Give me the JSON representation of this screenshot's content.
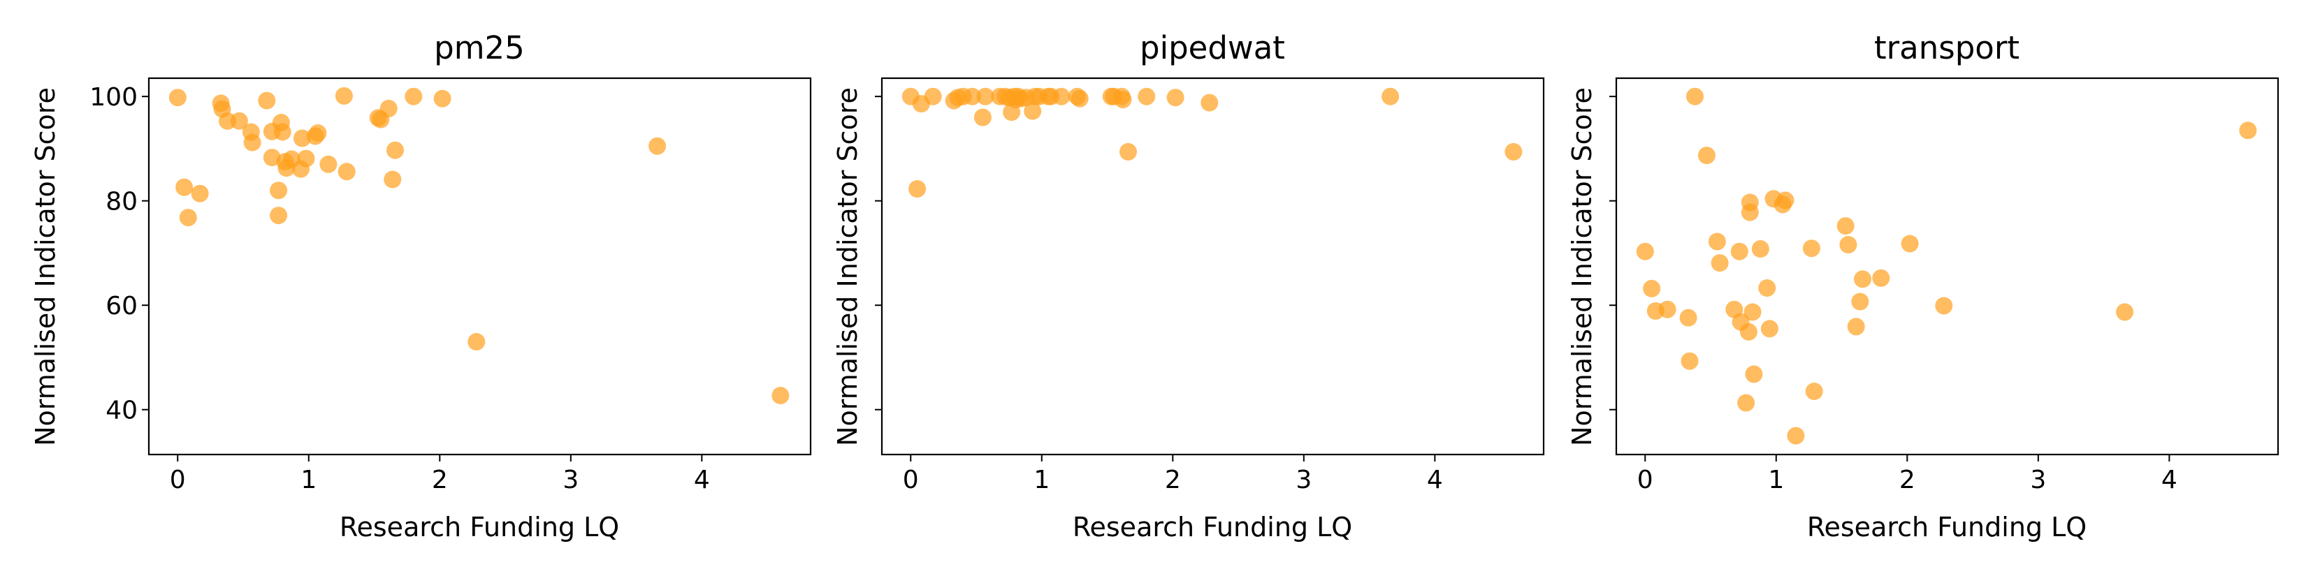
{
  "figure": {
    "marker_color": "#ff9f1c"
  },
  "chart_data": [
    {
      "type": "scatter",
      "title": "pm25",
      "xlabel": "Research Funding LQ",
      "ylabel": "Normalised Indicator Score",
      "xlim": [
        -0.22,
        4.83
      ],
      "ylim": [
        31.4,
        103.5
      ],
      "xticks": [
        0,
        1,
        2,
        3,
        4
      ],
      "yticks": [
        40,
        60,
        80,
        100
      ],
      "show_ytick_labels": true,
      "grid": false,
      "points": [
        [
          0.0,
          99.8
        ],
        [
          0.05,
          82.6
        ],
        [
          0.08,
          76.8
        ],
        [
          0.17,
          81.4
        ],
        [
          0.33,
          98.7
        ],
        [
          0.34,
          97.6
        ],
        [
          0.38,
          95.3
        ],
        [
          0.47,
          95.3
        ],
        [
          0.56,
          93.2
        ],
        [
          0.57,
          91.2
        ],
        [
          0.68,
          99.2
        ],
        [
          0.72,
          93.3
        ],
        [
          0.72,
          88.3
        ],
        [
          0.77,
          82.0
        ],
        [
          0.77,
          77.2
        ],
        [
          0.79,
          95.0
        ],
        [
          0.8,
          93.2
        ],
        [
          0.82,
          87.5
        ],
        [
          0.83,
          86.3
        ],
        [
          0.87,
          88.0
        ],
        [
          0.94,
          86.1
        ],
        [
          0.95,
          92.0
        ],
        [
          0.98,
          88.1
        ],
        [
          1.05,
          92.4
        ],
        [
          1.07,
          93.0
        ],
        [
          1.15,
          87.0
        ],
        [
          1.27,
          100.1
        ],
        [
          1.29,
          85.6
        ],
        [
          1.53,
          95.9
        ],
        [
          1.55,
          95.6
        ],
        [
          1.61,
          97.7
        ],
        [
          1.64,
          84.1
        ],
        [
          1.66,
          89.7
        ],
        [
          1.8,
          100.0
        ],
        [
          2.02,
          99.6
        ],
        [
          2.28,
          53.0
        ],
        [
          3.66,
          90.5
        ],
        [
          4.6,
          42.7
        ]
      ]
    },
    {
      "type": "scatter",
      "title": "pipedwat",
      "xlabel": "Research Funding LQ",
      "ylabel": "Normalised Indicator Score",
      "xlim": [
        -0.22,
        4.83
      ],
      "ylim": [
        31.4,
        103.5
      ],
      "xticks": [
        0,
        1,
        2,
        3,
        4
      ],
      "yticks": [
        40,
        60,
        80,
        100
      ],
      "show_ytick_labels": false,
      "grid": false,
      "points": [
        [
          0.0,
          100.0
        ],
        [
          0.05,
          82.3
        ],
        [
          0.08,
          98.6
        ],
        [
          0.17,
          100.0
        ],
        [
          0.33,
          99.2
        ],
        [
          0.36,
          99.8
        ],
        [
          0.4,
          100.0
        ],
        [
          0.47,
          100.0
        ],
        [
          0.55,
          96.0
        ],
        [
          0.57,
          100.0
        ],
        [
          0.68,
          100.0
        ],
        [
          0.72,
          100.0
        ],
        [
          0.75,
          99.8
        ],
        [
          0.77,
          97.0
        ],
        [
          0.79,
          100.0
        ],
        [
          0.8,
          99.4
        ],
        [
          0.82,
          100.0
        ],
        [
          0.84,
          99.6
        ],
        [
          0.88,
          99.8
        ],
        [
          0.93,
          97.2
        ],
        [
          0.95,
          100.0
        ],
        [
          0.98,
          100.0
        ],
        [
          1.05,
          100.0
        ],
        [
          1.07,
          100.0
        ],
        [
          1.15,
          100.0
        ],
        [
          1.27,
          100.0
        ],
        [
          1.29,
          99.6
        ],
        [
          1.53,
          100.0
        ],
        [
          1.55,
          100.0
        ],
        [
          1.61,
          100.0
        ],
        [
          1.62,
          99.4
        ],
        [
          1.66,
          89.4
        ],
        [
          1.8,
          100.0
        ],
        [
          2.02,
          99.8
        ],
        [
          2.28,
          98.8
        ],
        [
          3.66,
          100.0
        ],
        [
          4.6,
          89.4
        ]
      ]
    },
    {
      "type": "scatter",
      "title": "transport",
      "xlabel": "Research Funding LQ",
      "ylabel": "Normalised Indicator Score",
      "xlim": [
        -0.22,
        4.83
      ],
      "ylim": [
        31.4,
        103.5
      ],
      "xticks": [
        0,
        1,
        2,
        3,
        4
      ],
      "yticks": [
        40,
        60,
        80,
        100
      ],
      "show_ytick_labels": false,
      "grid": false,
      "points": [
        [
          0.0,
          70.3
        ],
        [
          0.05,
          63.2
        ],
        [
          0.08,
          58.9
        ],
        [
          0.17,
          59.2
        ],
        [
          0.33,
          57.6
        ],
        [
          0.34,
          49.3
        ],
        [
          0.38,
          100.0
        ],
        [
          0.47,
          88.7
        ],
        [
          0.55,
          72.2
        ],
        [
          0.57,
          68.1
        ],
        [
          0.68,
          59.2
        ],
        [
          0.72,
          70.3
        ],
        [
          0.73,
          56.8
        ],
        [
          0.77,
          41.3
        ],
        [
          0.79,
          54.9
        ],
        [
          0.8,
          79.7
        ],
        [
          0.8,
          77.8
        ],
        [
          0.82,
          58.7
        ],
        [
          0.83,
          46.8
        ],
        [
          0.88,
          70.8
        ],
        [
          0.93,
          63.3
        ],
        [
          0.95,
          55.5
        ],
        [
          0.98,
          80.4
        ],
        [
          1.05,
          79.3
        ],
        [
          1.07,
          80.1
        ],
        [
          1.15,
          35.0
        ],
        [
          1.27,
          70.9
        ],
        [
          1.29,
          43.5
        ],
        [
          1.53,
          75.2
        ],
        [
          1.55,
          71.6
        ],
        [
          1.61,
          55.9
        ],
        [
          1.64,
          60.7
        ],
        [
          1.66,
          65.0
        ],
        [
          1.8,
          65.2
        ],
        [
          2.02,
          71.8
        ],
        [
          2.28,
          59.9
        ],
        [
          3.66,
          58.7
        ],
        [
          4.6,
          93.5
        ]
      ]
    }
  ]
}
